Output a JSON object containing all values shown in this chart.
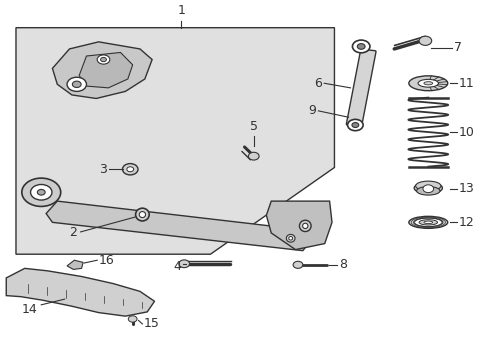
{
  "background_color": "#ffffff",
  "diagram_bg": "#e0e0e0",
  "line_color": "#333333",
  "font_size_label": 9
}
